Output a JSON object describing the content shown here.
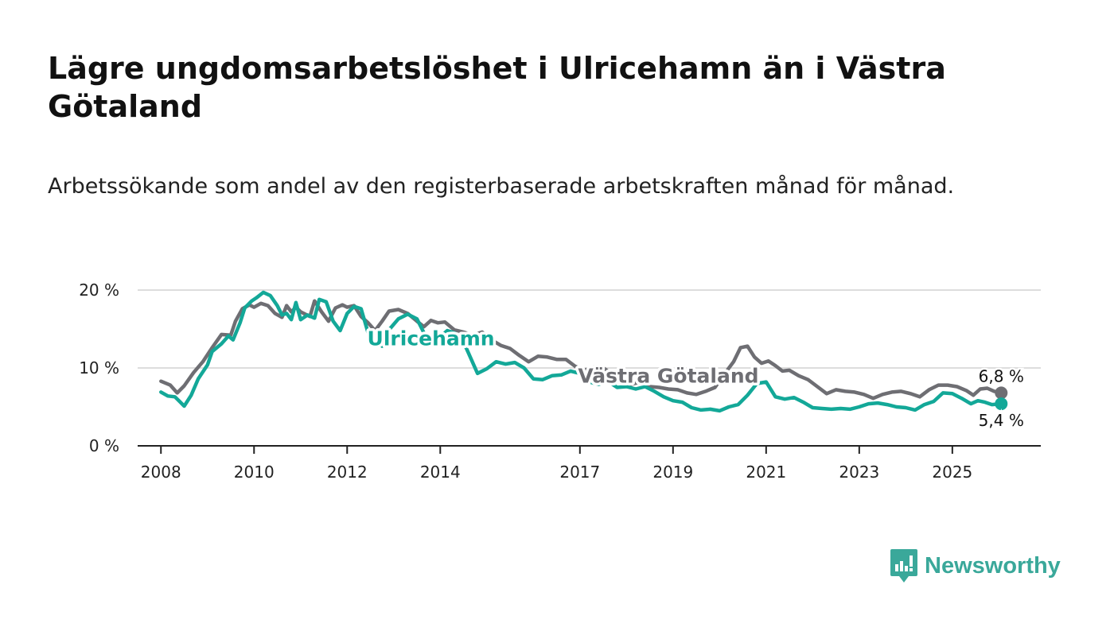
{
  "header": {
    "title": "Lägre ungdomsarbetslöshet i Ulricehamn än i Västra Götaland",
    "subtitle": "Arbetssökande som andel av den registerbaserade arbetskraften månad för månad."
  },
  "brand": {
    "name": "Newsworthy",
    "icon": "newsworthy-logo-icon"
  },
  "colors": {
    "ulricehamn": "#13a898",
    "vastra": "#6e6e73",
    "grid": "#dddddd",
    "axis": "#222222"
  },
  "chart_data": {
    "type": "line",
    "title": "Lägre ungdomsarbetslöshet i Ulricehamn än i Västra Götaland",
    "xlabel": "",
    "ylabel": "",
    "xlim": [
      2007.5,
      2026.9
    ],
    "ylim": [
      0,
      20
    ],
    "x_ticks": [
      2008,
      2010,
      2012,
      2014,
      2017,
      2019,
      2021,
      2023,
      2025
    ],
    "x_tick_labels": [
      "2008",
      "2010",
      "2012",
      "2014",
      "2017",
      "2019",
      "2021",
      "2023",
      "2025"
    ],
    "y_ticks": [
      0,
      10,
      20
    ],
    "y_tick_labels": [
      "0 %",
      "10 %",
      "20 %"
    ],
    "grid": true,
    "series": [
      {
        "name": "Västra Götaland",
        "label_text": "Västra Götaland",
        "end_label": "6,8 %",
        "points": [
          [
            2008.0,
            8.3
          ],
          [
            2008.2,
            7.8
          ],
          [
            2008.35,
            6.8
          ],
          [
            2008.5,
            7.7
          ],
          [
            2008.7,
            9.4
          ],
          [
            2008.9,
            10.8
          ],
          [
            2009.1,
            12.6
          ],
          [
            2009.3,
            14.3
          ],
          [
            2009.5,
            14.2
          ],
          [
            2009.6,
            16.0
          ],
          [
            2009.75,
            17.6
          ],
          [
            2009.9,
            18.1
          ],
          [
            2010.0,
            17.8
          ],
          [
            2010.15,
            18.3
          ],
          [
            2010.3,
            18.0
          ],
          [
            2010.45,
            17.0
          ],
          [
            2010.6,
            16.5
          ],
          [
            2010.7,
            18.0
          ],
          [
            2010.8,
            17.2
          ],
          [
            2010.9,
            17.8
          ],
          [
            2011.0,
            17.2
          ],
          [
            2011.2,
            16.6
          ],
          [
            2011.3,
            18.6
          ],
          [
            2011.45,
            17.2
          ],
          [
            2011.6,
            16.0
          ],
          [
            2011.75,
            17.7
          ],
          [
            2011.9,
            18.1
          ],
          [
            2012.0,
            17.8
          ],
          [
            2012.15,
            18.0
          ],
          [
            2012.3,
            16.6
          ],
          [
            2012.45,
            15.8
          ],
          [
            2012.6,
            14.8
          ],
          [
            2012.75,
            16.0
          ],
          [
            2012.9,
            17.3
          ],
          [
            2013.1,
            17.5
          ],
          [
            2013.3,
            17.0
          ],
          [
            2013.5,
            16.0
          ],
          [
            2013.65,
            15.3
          ],
          [
            2013.8,
            16.1
          ],
          [
            2013.95,
            15.8
          ],
          [
            2014.1,
            15.9
          ],
          [
            2014.3,
            14.9
          ],
          [
            2014.5,
            14.6
          ],
          [
            2014.7,
            14.2
          ],
          [
            2014.9,
            14.6
          ],
          [
            2015.1,
            13.6
          ],
          [
            2015.3,
            12.9
          ],
          [
            2015.5,
            12.5
          ],
          [
            2015.7,
            11.6
          ],
          [
            2015.9,
            10.8
          ],
          [
            2016.1,
            11.5
          ],
          [
            2016.3,
            11.4
          ],
          [
            2016.5,
            11.1
          ],
          [
            2016.7,
            11.1
          ],
          [
            2016.9,
            10.2
          ],
          [
            2017.1,
            9.7
          ],
          [
            2017.3,
            10.1
          ],
          [
            2017.5,
            10.0
          ],
          [
            2017.7,
            9.2
          ],
          [
            2017.9,
            8.4
          ],
          [
            2018.1,
            7.9
          ],
          [
            2018.3,
            8.2
          ],
          [
            2018.5,
            7.6
          ],
          [
            2018.7,
            7.5
          ],
          [
            2018.9,
            7.3
          ],
          [
            2019.1,
            7.2
          ],
          [
            2019.3,
            6.8
          ],
          [
            2019.5,
            6.6
          ],
          [
            2019.7,
            7.0
          ],
          [
            2019.9,
            7.5
          ],
          [
            2020.1,
            9.2
          ],
          [
            2020.3,
            10.8
          ],
          [
            2020.45,
            12.6
          ],
          [
            2020.6,
            12.8
          ],
          [
            2020.75,
            11.4
          ],
          [
            2020.9,
            10.6
          ],
          [
            2021.05,
            10.9
          ],
          [
            2021.2,
            10.3
          ],
          [
            2021.35,
            9.6
          ],
          [
            2021.5,
            9.7
          ],
          [
            2021.7,
            9.0
          ],
          [
            2021.9,
            8.5
          ],
          [
            2022.1,
            7.6
          ],
          [
            2022.3,
            6.7
          ],
          [
            2022.5,
            7.2
          ],
          [
            2022.7,
            7.0
          ],
          [
            2022.9,
            6.9
          ],
          [
            2023.1,
            6.6
          ],
          [
            2023.3,
            6.1
          ],
          [
            2023.5,
            6.6
          ],
          [
            2023.7,
            6.9
          ],
          [
            2023.9,
            7.0
          ],
          [
            2024.1,
            6.7
          ],
          [
            2024.3,
            6.3
          ],
          [
            2024.5,
            7.2
          ],
          [
            2024.7,
            7.8
          ],
          [
            2024.9,
            7.8
          ],
          [
            2025.1,
            7.6
          ],
          [
            2025.3,
            7.1
          ],
          [
            2025.45,
            6.5
          ],
          [
            2025.6,
            7.3
          ],
          [
            2025.75,
            7.4
          ],
          [
            2025.9,
            7.0
          ],
          [
            2026.05,
            6.8
          ]
        ]
      },
      {
        "name": "Ulricehamn",
        "label_text": "Ulricehamn",
        "end_label": "5,4 %",
        "points": [
          [
            2008.0,
            6.9
          ],
          [
            2008.15,
            6.4
          ],
          [
            2008.3,
            6.3
          ],
          [
            2008.4,
            5.7
          ],
          [
            2008.5,
            5.1
          ],
          [
            2008.65,
            6.5
          ],
          [
            2008.8,
            8.6
          ],
          [
            2009.0,
            10.4
          ],
          [
            2009.1,
            12.1
          ],
          [
            2009.3,
            13.1
          ],
          [
            2009.45,
            14.1
          ],
          [
            2009.55,
            13.6
          ],
          [
            2009.7,
            15.8
          ],
          [
            2009.8,
            17.7
          ],
          [
            2009.95,
            18.6
          ],
          [
            2010.05,
            19.0
          ],
          [
            2010.2,
            19.7
          ],
          [
            2010.35,
            19.3
          ],
          [
            2010.5,
            18.0
          ],
          [
            2010.6,
            16.8
          ],
          [
            2010.7,
            17.0
          ],
          [
            2010.8,
            16.2
          ],
          [
            2010.9,
            18.4
          ],
          [
            2011.0,
            16.2
          ],
          [
            2011.15,
            16.8
          ],
          [
            2011.3,
            16.4
          ],
          [
            2011.4,
            18.8
          ],
          [
            2011.55,
            18.5
          ],
          [
            2011.7,
            16.0
          ],
          [
            2011.85,
            14.8
          ],
          [
            2012.0,
            17.0
          ],
          [
            2012.15,
            17.9
          ],
          [
            2012.3,
            17.6
          ],
          [
            2012.45,
            14.5
          ],
          [
            2012.6,
            13.9
          ],
          [
            2012.75,
            12.8
          ],
          [
            2012.9,
            14.9
          ],
          [
            2013.1,
            16.3
          ],
          [
            2013.3,
            16.9
          ],
          [
            2013.5,
            16.3
          ],
          [
            2013.65,
            14.5
          ],
          [
            2013.8,
            14.0
          ],
          [
            2014.0,
            14.0
          ],
          [
            2014.15,
            14.8
          ],
          [
            2014.3,
            14.5
          ],
          [
            2014.45,
            14.0
          ],
          [
            2014.6,
            12.0
          ],
          [
            2014.8,
            9.3
          ],
          [
            2015.0,
            9.9
          ],
          [
            2015.2,
            10.8
          ],
          [
            2015.4,
            10.5
          ],
          [
            2015.6,
            10.7
          ],
          [
            2015.8,
            10.0
          ],
          [
            2016.0,
            8.6
          ],
          [
            2016.2,
            8.5
          ],
          [
            2016.4,
            9.0
          ],
          [
            2016.6,
            9.1
          ],
          [
            2016.8,
            9.6
          ],
          [
            2017.0,
            9.3
          ],
          [
            2017.2,
            8.2
          ],
          [
            2017.4,
            7.9
          ],
          [
            2017.6,
            8.3
          ],
          [
            2017.8,
            7.5
          ],
          [
            2018.0,
            7.6
          ],
          [
            2018.2,
            7.3
          ],
          [
            2018.4,
            7.6
          ],
          [
            2018.6,
            7.0
          ],
          [
            2018.8,
            6.3
          ],
          [
            2019.0,
            5.8
          ],
          [
            2019.2,
            5.6
          ],
          [
            2019.4,
            4.9
          ],
          [
            2019.6,
            4.6
          ],
          [
            2019.8,
            4.7
          ],
          [
            2020.0,
            4.5
          ],
          [
            2020.2,
            5.0
          ],
          [
            2020.4,
            5.3
          ],
          [
            2020.6,
            6.5
          ],
          [
            2020.8,
            8.0
          ],
          [
            2021.0,
            8.2
          ],
          [
            2021.2,
            6.3
          ],
          [
            2021.4,
            6.0
          ],
          [
            2021.6,
            6.2
          ],
          [
            2021.8,
            5.6
          ],
          [
            2022.0,
            4.9
          ],
          [
            2022.2,
            4.8
          ],
          [
            2022.4,
            4.7
          ],
          [
            2022.6,
            4.8
          ],
          [
            2022.8,
            4.7
          ],
          [
            2023.0,
            5.0
          ],
          [
            2023.2,
            5.4
          ],
          [
            2023.4,
            5.5
          ],
          [
            2023.6,
            5.3
          ],
          [
            2023.8,
            5.0
          ],
          [
            2024.0,
            4.9
          ],
          [
            2024.2,
            4.6
          ],
          [
            2024.4,
            5.3
          ],
          [
            2024.6,
            5.7
          ],
          [
            2024.8,
            6.8
          ],
          [
            2025.0,
            6.7
          ],
          [
            2025.2,
            6.1
          ],
          [
            2025.4,
            5.4
          ],
          [
            2025.55,
            5.8
          ],
          [
            2025.7,
            5.6
          ],
          [
            2025.85,
            5.3
          ],
          [
            2026.05,
            5.4
          ]
        ]
      }
    ]
  }
}
